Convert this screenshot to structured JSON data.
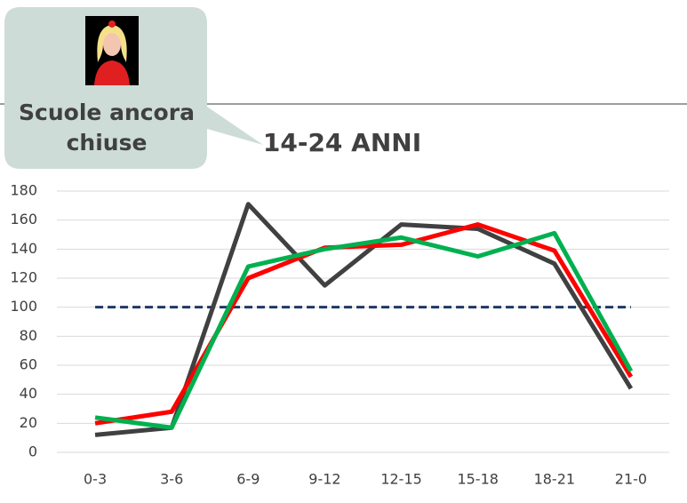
{
  "chart_data": {
    "type": "line",
    "title": "14-24 ANNI",
    "annotation": [
      "Scuole ancora",
      "chiuse"
    ],
    "categories": [
      "0-3",
      "3-6",
      "6-9",
      "9-12",
      "12-15",
      "15-18",
      "18-21",
      "21-0"
    ],
    "series": [
      {
        "color": "#1f3864",
        "dashed": true,
        "values": [
          100,
          100,
          100,
          100,
          100,
          100,
          100,
          100
        ]
      },
      {
        "color": "#404040",
        "values": [
          12,
          17,
          171,
          115,
          157,
          154,
          130,
          44
        ]
      },
      {
        "color": "#ff0000",
        "values": [
          20,
          28,
          120,
          141,
          143,
          157,
          139,
          52
        ]
      },
      {
        "color": "#00b050",
        "values": [
          24,
          17,
          128,
          140,
          148,
          135,
          151,
          56
        ]
      }
    ],
    "ylim": [
      0,
      180
    ],
    "yticks": [
      0,
      20,
      40,
      60,
      80,
      100,
      120,
      140,
      160,
      180
    ],
    "grid": true
  }
}
